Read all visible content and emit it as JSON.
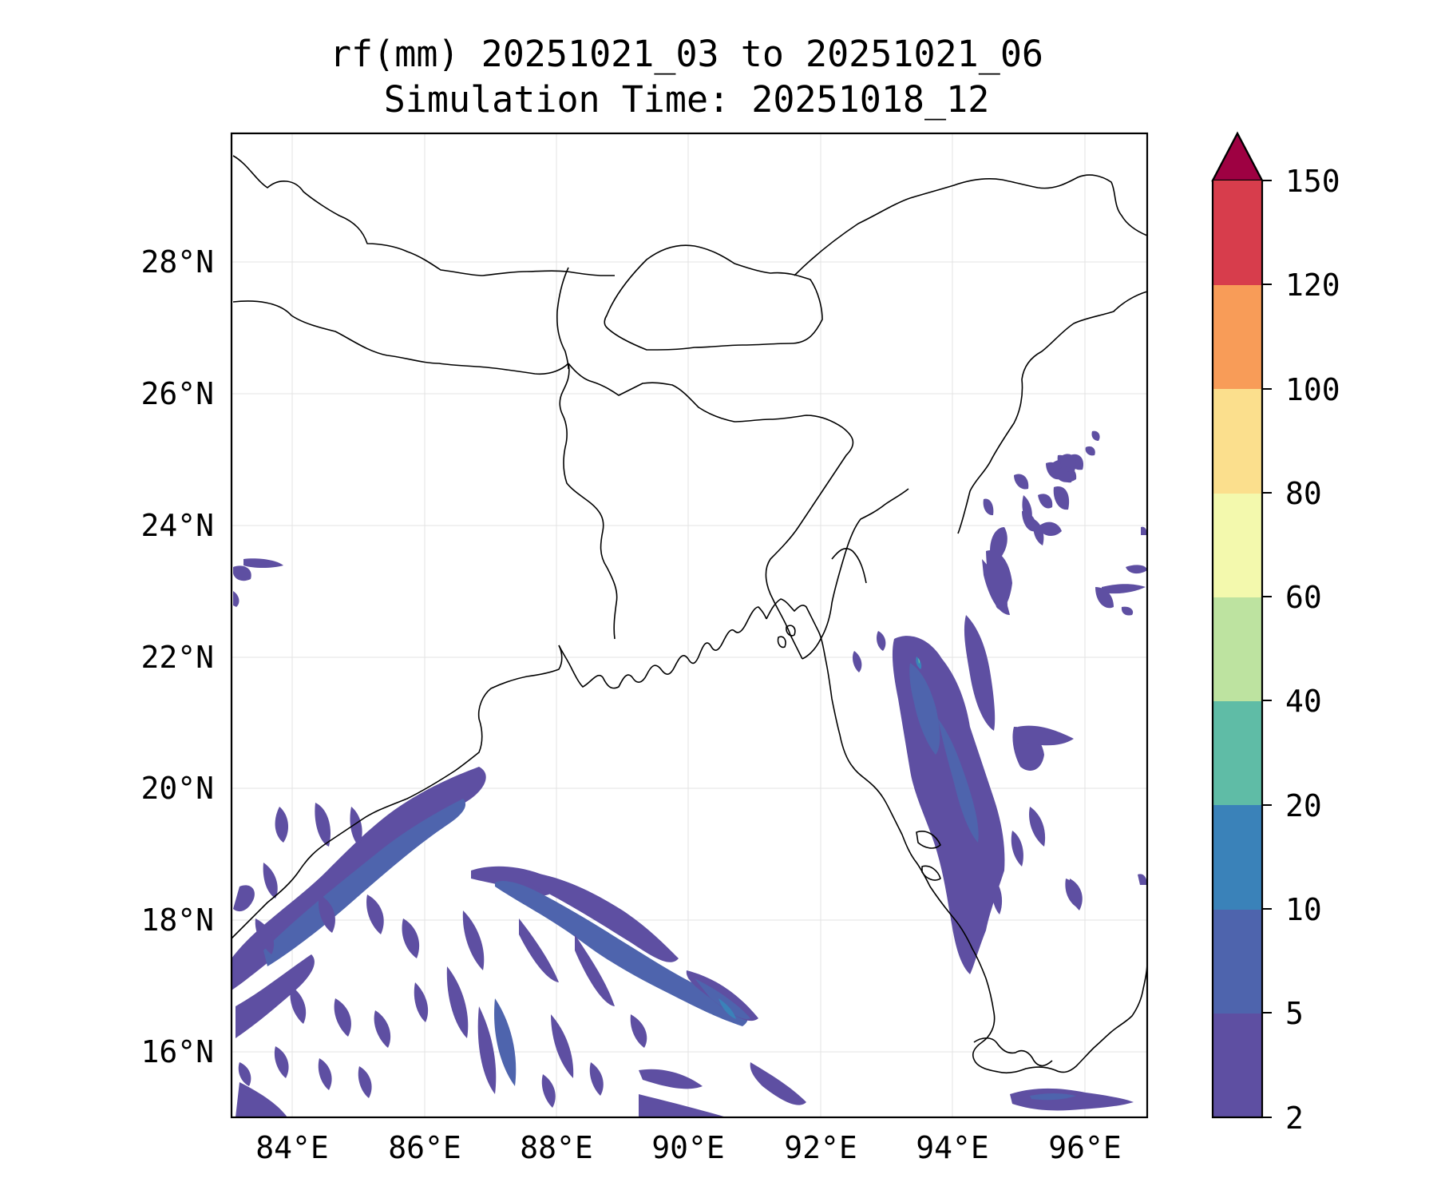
{
  "title": {
    "line1": "rf(mm) 20251021_03 to 20251021_06",
    "line2": "Simulation Time: 20251018_12"
  },
  "map": {
    "lon_range": [
      83.1,
      96.95
    ],
    "lat_range": [
      15.0,
      29.9
    ],
    "x_ticks": [
      "84°E",
      "86°E",
      "88°E",
      "90°E",
      "92°E",
      "94°E",
      "96°E"
    ],
    "y_ticks": [
      "16°N",
      "18°N",
      "20°N",
      "22°N",
      "24°N",
      "26°N",
      "28°N"
    ],
    "gridlines": true,
    "coastline_color": "#000000"
  },
  "colorbar": {
    "levels": [
      "2",
      "5",
      "10",
      "20",
      "40",
      "60",
      "80",
      "100",
      "120",
      "150"
    ],
    "colors": [
      "#5e4fa2",
      "#4e64ad",
      "#3a82b9",
      "#5fbca6",
      "#bde3a0",
      "#f3f9ad",
      "#fbdf8d",
      "#f89c58",
      "#d73d4c"
    ],
    "extend_color": "#9e0142",
    "extend": "max"
  }
}
